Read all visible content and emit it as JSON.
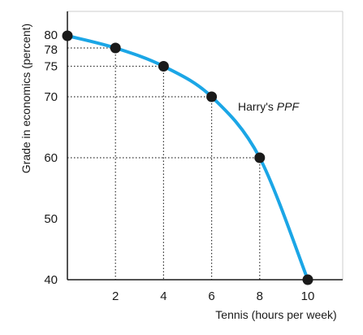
{
  "chart_data": {
    "type": "line",
    "title": "",
    "xlabel": "Tennis (hours per week)",
    "ylabel": "Grade in economics (percent)",
    "xlim": [
      0,
      10
    ],
    "ylim": [
      40,
      80
    ],
    "xticks": [
      "2",
      "4",
      "6",
      "8",
      "10"
    ],
    "yticks": [
      "40",
      "50",
      "60",
      "70",
      "75",
      "78",
      "80"
    ],
    "grid": false,
    "series": [
      {
        "name": "Harry's PPF",
        "x": [
          0,
          2,
          4,
          6,
          8,
          10
        ],
        "y": [
          80,
          78,
          75,
          70,
          60,
          40
        ]
      }
    ],
    "annotation": {
      "prefix": "Harry's ",
      "emphasis": "PPF"
    },
    "colors": {
      "curve": "#1ba6e6",
      "points": "#1a1a1a",
      "axis": "#1a1a1a",
      "guides": "#333333",
      "frame": "#cccccc"
    }
  }
}
